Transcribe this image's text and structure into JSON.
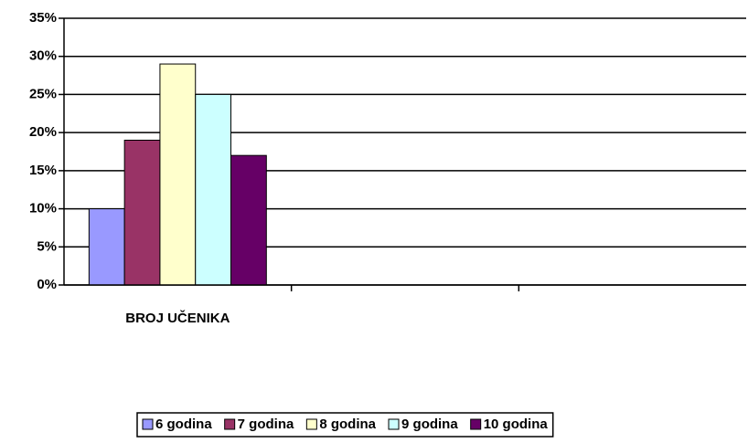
{
  "chart_data": {
    "type": "bar",
    "categories": [
      "BROJ UČENIKA",
      null,
      null
    ],
    "series": [
      {
        "name": "6 godina",
        "color": "#9999ff",
        "values": [
          10,
          null,
          null
        ]
      },
      {
        "name": "7 godina",
        "color": "#993366",
        "values": [
          19,
          null,
          null
        ]
      },
      {
        "name": "8 godina",
        "color": "#ffffcc",
        "values": [
          29,
          null,
          null
        ]
      },
      {
        "name": "9 godina",
        "color": "#ccffff",
        "values": [
          25,
          null,
          null
        ]
      },
      {
        "name": "10 godina",
        "color": "#660066",
        "values": [
          17,
          null,
          null
        ]
      }
    ],
    "ylim": [
      0,
      35
    ],
    "yticks": [
      {
        "value": 0,
        "label": "0%"
      },
      {
        "value": 5,
        "label": "5%"
      },
      {
        "value": 10,
        "label": "10%"
      },
      {
        "value": 15,
        "label": "15%"
      },
      {
        "value": 20,
        "label": "20%"
      },
      {
        "value": 25,
        "label": "25%"
      },
      {
        "value": 30,
        "label": "30%"
      },
      {
        "value": 35,
        "label": "35%"
      }
    ],
    "grid": true,
    "legend": "bottom"
  }
}
